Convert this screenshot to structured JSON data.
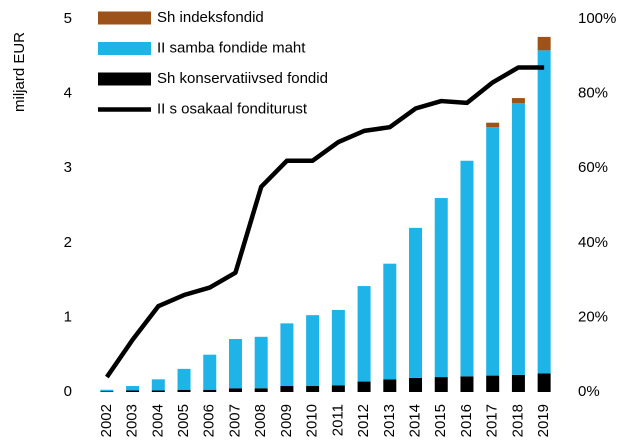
{
  "chart_data": {
    "type": "bar",
    "y_label": "miljard EUR",
    "categories": [
      "2002",
      "2003",
      "2004",
      "2005",
      "2006",
      "2007",
      "2008",
      "2009",
      "2010",
      "2011",
      "2012",
      "2013",
      "2014",
      "2015",
      "2016",
      "2017",
      "2018",
      "2019"
    ],
    "series": [
      {
        "name": "Sh indeksfondid",
        "color": "#9c5218",
        "values": [
          0,
          0,
          0,
          0,
          0,
          0,
          0,
          0,
          0,
          0,
          0,
          0,
          0,
          0,
          0,
          0.06,
          0.07,
          0.18
        ]
      },
      {
        "name": "II samba fondide maht",
        "color": "#1eb4e8",
        "values": [
          0.02,
          0.06,
          0.15,
          0.28,
          0.47,
          0.66,
          0.69,
          0.84,
          0.95,
          1.01,
          1.28,
          1.55,
          2.01,
          2.4,
          2.89,
          3.33,
          3.64,
          4.33
        ]
      },
      {
        "name": "Sh konservatiivsed fondid",
        "color": "#000000",
        "values": [
          0.01,
          0.02,
          0.02,
          0.03,
          0.03,
          0.05,
          0.05,
          0.08,
          0.08,
          0.09,
          0.14,
          0.17,
          0.19,
          0.2,
          0.21,
          0.22,
          0.23,
          0.25
        ]
      },
      {
        "name": "II s osakaal fonditurust",
        "color": "#000000",
        "type": "line",
        "axis": "y2",
        "values": [
          4,
          14,
          23,
          26,
          28,
          32,
          55,
          62,
          62,
          67,
          70,
          71,
          76,
          78,
          77.5,
          83,
          87,
          87
        ]
      }
    ],
    "ylim": [
      0,
      5
    ],
    "yticks": [
      0,
      1,
      2,
      3,
      4,
      5
    ],
    "y2lim": [
      0,
      100
    ],
    "y2ticks": [
      {
        "value": 0,
        "label": "0%"
      },
      {
        "value": 20,
        "label": "20%"
      },
      {
        "value": 40,
        "label": "40%"
      },
      {
        "value": 60,
        "label": "60%"
      },
      {
        "value": 80,
        "label": "80%"
      },
      {
        "value": 100,
        "label": "100%"
      }
    ],
    "grid": false
  }
}
